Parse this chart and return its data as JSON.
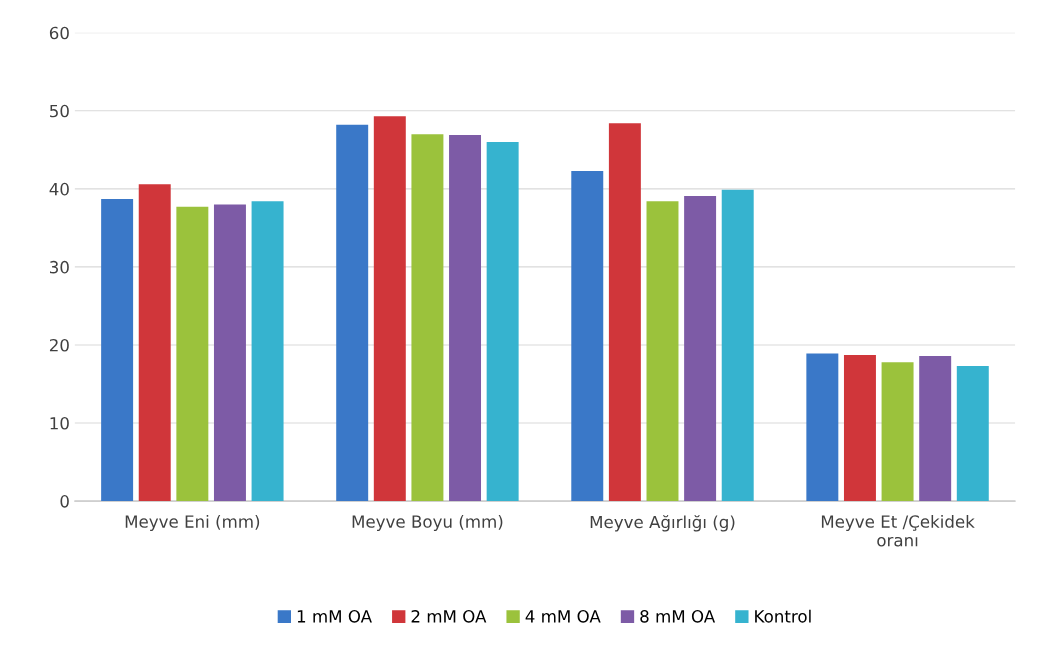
{
  "chart_data": {
    "type": "bar",
    "categories": [
      "Meyve Eni (mm)",
      "Meyve Boyu (mm)",
      "Meyve Ağırlığı (g)",
      "Meyve Et /Çekidek oranı"
    ],
    "series": [
      {
        "name": "1 mM OA",
        "color": "#3a78c8",
        "values": [
          38.7,
          48.2,
          42.3,
          18.9
        ]
      },
      {
        "name": "2 mM OA",
        "color": "#d0363a",
        "values": [
          40.6,
          49.3,
          48.4,
          18.7
        ]
      },
      {
        "name": "4 mM OA",
        "color": "#9bc23c",
        "values": [
          37.7,
          47.0,
          38.4,
          17.8
        ]
      },
      {
        "name": "8 mM OA",
        "color": "#7d5ba6",
        "values": [
          38.0,
          46.9,
          39.1,
          18.6
        ]
      },
      {
        "name": "Kontrol",
        "color": "#36b3cf",
        "values": [
          38.4,
          46.0,
          39.9,
          17.3
        ]
      }
    ],
    "ylim": [
      0,
      60
    ],
    "yticks": [
      0,
      10,
      20,
      30,
      40,
      50,
      60
    ],
    "grid": "y",
    "legend": "bottom"
  }
}
